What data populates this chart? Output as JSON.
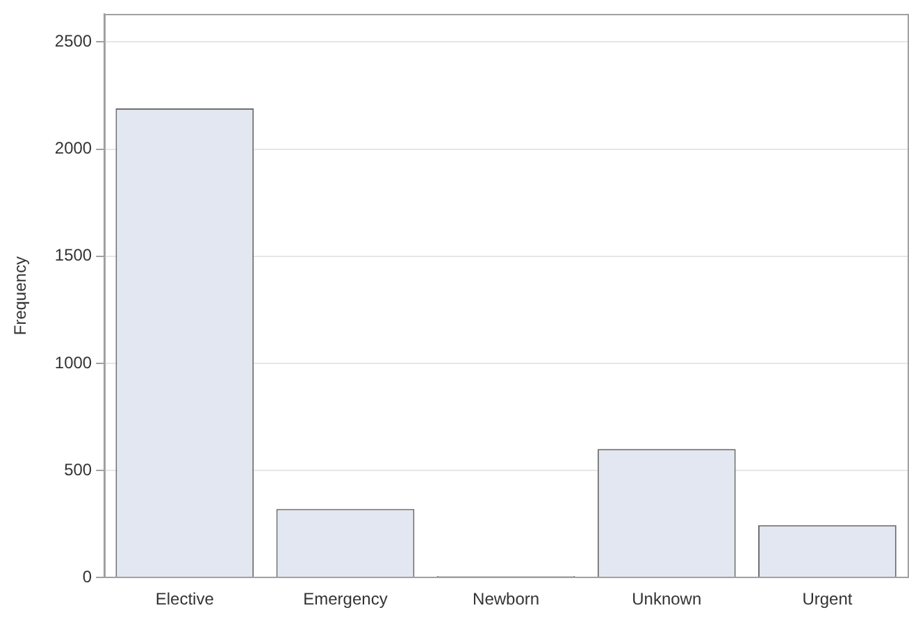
{
  "chart_data": {
    "type": "bar",
    "ylabel": "Frequency",
    "categories": [
      "Elective",
      "Emergency",
      "Newborn",
      "Unknown",
      "Urgent"
    ],
    "values": [
      2190,
      320,
      7,
      600,
      245
    ],
    "color": "#e3e7f1",
    "ylim": [
      0,
      2630
    ],
    "yticks": [
      0,
      500,
      1000,
      1500,
      2000,
      2500
    ],
    "grid": "y",
    "legend": false
  }
}
